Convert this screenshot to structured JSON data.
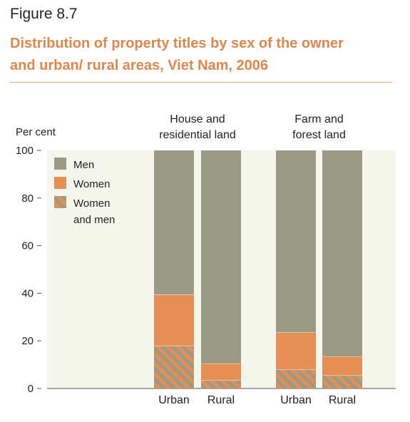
{
  "figure": {
    "label": "Figure 8.7",
    "title_line1": "Distribution of property titles by sex of the owner",
    "title_line2": "and urban/ rural areas, Viet Nam, 2006"
  },
  "colors": {
    "men": "#9b9a85",
    "women": "#e58f55",
    "hatch_stripe": "#e58f55",
    "hatch_base": "#9b9a85",
    "plot_bg": "#f6f7ec",
    "title": "#e0874b"
  },
  "chart_data": {
    "type": "bar",
    "stacked": true,
    "ylabel": "Per cent",
    "ylim": [
      0,
      100
    ],
    "yticks": [
      0,
      20,
      40,
      60,
      80,
      100
    ],
    "grid": false,
    "legend_position": "top-left",
    "groups": [
      {
        "label_line1": "House and",
        "label_line2": "residential land",
        "categories": [
          "Urban",
          "Rural"
        ]
      },
      {
        "label_line1": "Farm and",
        "label_line2": "forest land",
        "categories": [
          "Urban",
          "Rural"
        ]
      }
    ],
    "categories": [
      "Urban",
      "Rural",
      "Urban",
      "Rural"
    ],
    "series": [
      {
        "name": "Women and men",
        "legend_line1": "Women",
        "legend_line2": "and men",
        "values": [
          18,
          3.5,
          8,
          5.5
        ]
      },
      {
        "name": "Women",
        "values": [
          21.5,
          7,
          15.5,
          8
        ]
      },
      {
        "name": "Men",
        "values": [
          60.5,
          89.5,
          76.5,
          86.5
        ]
      }
    ]
  }
}
